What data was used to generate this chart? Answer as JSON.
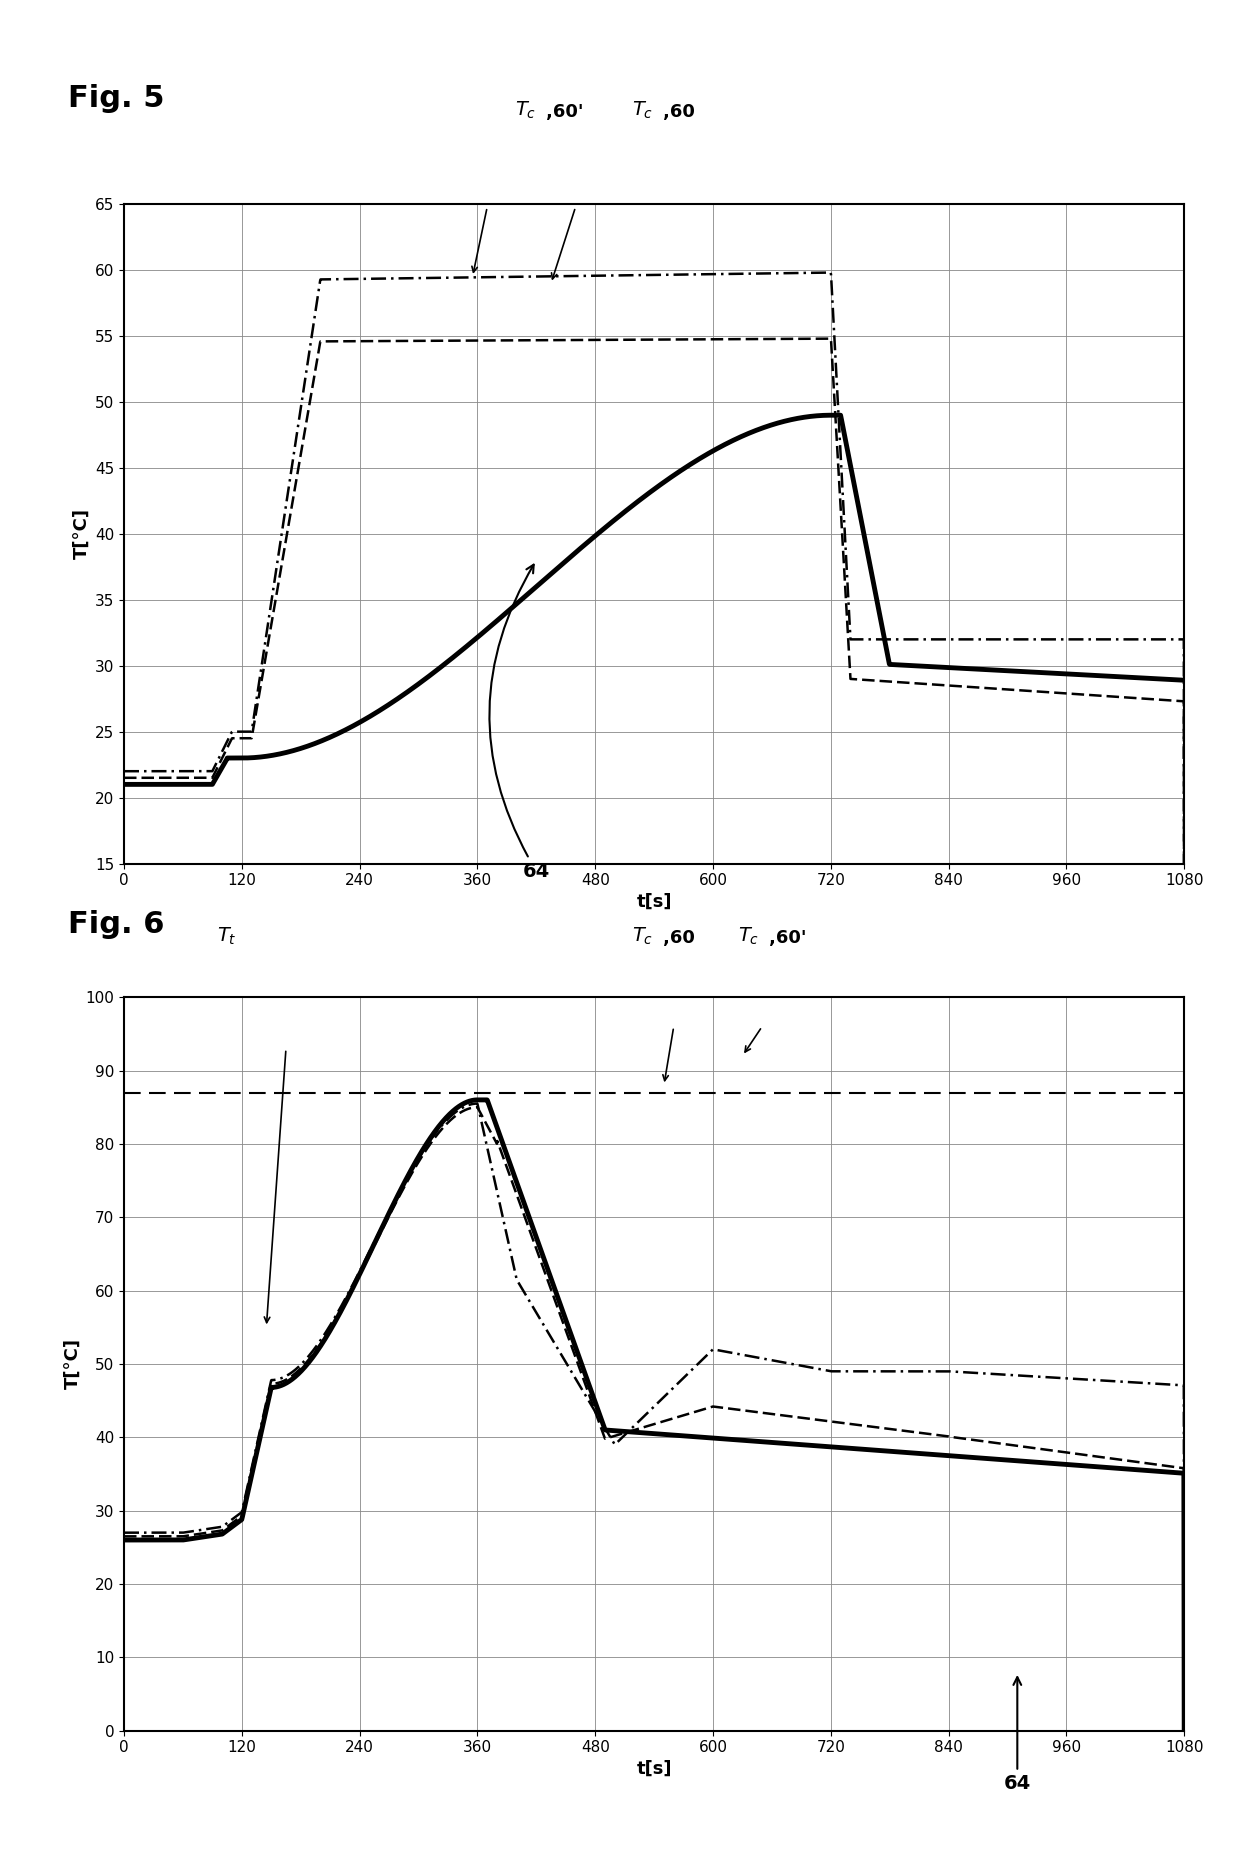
{
  "fig5": {
    "title": "Fig. 5",
    "xlabel": "t[s]",
    "ylabel": "T[°C]",
    "xlim": [
      0,
      1080
    ],
    "ylim": [
      15,
      65
    ],
    "yticks": [
      15,
      20,
      25,
      30,
      35,
      40,
      45,
      50,
      55,
      60,
      65
    ],
    "xticks": [
      0,
      120,
      240,
      360,
      480,
      600,
      720,
      840,
      960,
      1080
    ]
  },
  "fig6": {
    "title": "Fig. 6",
    "xlabel": "t[s]",
    "ylabel": "T[°C]",
    "xlim": [
      0,
      1080
    ],
    "ylim": [
      0,
      100
    ],
    "yticks": [
      0,
      10,
      20,
      30,
      40,
      50,
      60,
      70,
      80,
      90,
      100
    ],
    "xticks": [
      0,
      120,
      240,
      360,
      480,
      600,
      720,
      840,
      960,
      1080
    ],
    "hline_y": 87
  }
}
